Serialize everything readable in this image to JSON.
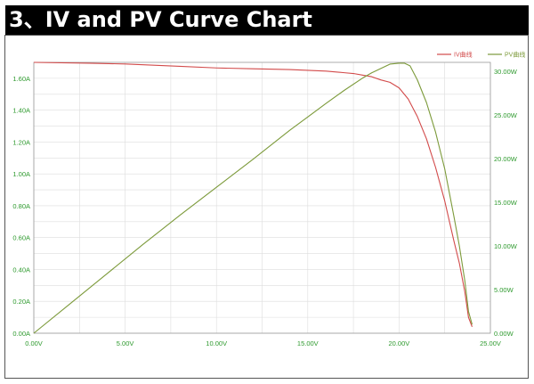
{
  "header": {
    "title": "3、IV and PV Curve Chart"
  },
  "colors": {
    "iv": "#d24a4a",
    "pv": "#7c9a3a",
    "grid": "#dddddd",
    "tick_text": "#2e9a2e",
    "title_bg": "#000000"
  },
  "chart_data": {
    "type": "line",
    "xlim": [
      0,
      25
    ],
    "ylim_left": [
      0,
      1.7
    ],
    "ylim_right": [
      0,
      31
    ],
    "x_ticks": [
      "0.00V",
      "5.00V",
      "10.00V",
      "15.00V",
      "20.00V",
      "25.00V"
    ],
    "x_tick_values": [
      0,
      5,
      10,
      15,
      20,
      25
    ],
    "y_left_ticks": [
      "0.00A",
      "0.20A",
      "0.40A",
      "0.60A",
      "0.80A",
      "1.00A",
      "1.20A",
      "1.40A",
      "1.60A"
    ],
    "y_left_tick_values": [
      0,
      0.2,
      0.4,
      0.6,
      0.8,
      1.0,
      1.2,
      1.4,
      1.6
    ],
    "y_right_ticks": [
      "0.00W",
      "5.00W",
      "10.00W",
      "15.00W",
      "20.00W",
      "25.00W",
      "30.00W"
    ],
    "y_right_tick_values": [
      0,
      5,
      10,
      15,
      20,
      25,
      30
    ],
    "grid": true,
    "legend_position": "top-right",
    "series": [
      {
        "name": "IV曲线",
        "axis": "left",
        "x": [
          0,
          3,
          5,
          8,
          10,
          12,
          14,
          15,
          16,
          17,
          17.5,
          18,
          18.5,
          19,
          19.5,
          20,
          20.5,
          21,
          21.5,
          22,
          22.5,
          23,
          23.3,
          23.6,
          23.8,
          24.0
        ],
        "y": [
          1.7,
          1.695,
          1.69,
          1.675,
          1.665,
          1.66,
          1.655,
          1.65,
          1.645,
          1.635,
          1.63,
          1.62,
          1.61,
          1.59,
          1.575,
          1.54,
          1.47,
          1.36,
          1.22,
          1.04,
          0.83,
          0.58,
          0.44,
          0.26,
          0.1,
          0.04
        ]
      },
      {
        "name": "PV曲线",
        "axis": "right",
        "x": [
          0,
          2,
          4,
          6,
          8,
          10,
          12,
          14,
          16,
          17,
          18,
          18.5,
          19,
          19.5,
          20,
          20.3,
          20.6,
          21,
          21.5,
          22,
          22.5,
          23,
          23.3,
          23.6,
          23.8,
          24.0
        ],
        "y": [
          0,
          3.4,
          6.8,
          10.2,
          13.5,
          16.7,
          19.9,
          23.2,
          26.3,
          27.8,
          29.2,
          29.8,
          30.3,
          30.8,
          30.9,
          30.9,
          30.6,
          29.0,
          26.4,
          23.0,
          18.8,
          13.4,
          10.0,
          6.0,
          2.5,
          1.0
        ]
      }
    ]
  }
}
